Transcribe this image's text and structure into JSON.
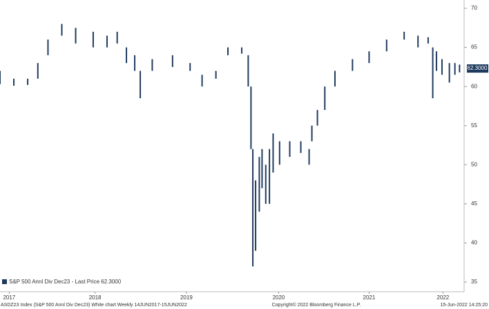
{
  "chart_data": {
    "type": "highlow",
    "series_name": "S&P 500 Annl Div Dec23 - Last Price 62.3000",
    "color": "#1f3a5f",
    "footer_left": "ASDZ23 Index (S&P 500 Annl Div  Dec23) White chart  Weekly 14JUN2017-15JUN2022",
    "footer_center": "Copyright© 2022 Bloomberg Finance L.P.",
    "footer_right": "15-Jun-2022 14:25:20",
    "last_value": 62.3,
    "last_value_label": "62.3000",
    "xlim": [
      2017.45,
      2022.45
    ],
    "xticks": [
      {
        "value": 2017.55,
        "label": "2017"
      },
      {
        "value": 2018.48,
        "label": "2018"
      },
      {
        "value": 2019.47,
        "label": "2019"
      },
      {
        "value": 2020.47,
        "label": "2020"
      },
      {
        "value": 2021.45,
        "label": "2021"
      },
      {
        "value": 2022.25,
        "label": "2022"
      }
    ],
    "ylim": [
      35,
      70
    ],
    "yticks": [
      35,
      40,
      45,
      50,
      55,
      60,
      65,
      70
    ],
    "x": [
      2017.45,
      2017.6,
      2017.75,
      2017.86,
      2017.97,
      2018.12,
      2018.27,
      2018.46,
      2018.61,
      2018.72,
      2018.82,
      2018.91,
      2018.97,
      2019.1,
      2019.32,
      2019.51,
      2019.64,
      2019.79,
      2019.92,
      2020.07,
      2020.14,
      2020.17,
      2020.19,
      2020.22,
      2020.26,
      2020.29,
      2020.33,
      2020.37,
      2020.41,
      2020.48,
      2020.59,
      2020.71,
      2020.8,
      2020.83,
      2020.89,
      2020.97,
      2021.08,
      2021.27,
      2021.45,
      2021.64,
      2021.83,
      2021.98,
      2022.09,
      2022.14,
      2022.18,
      2022.24,
      2022.32,
      2022.38,
      2022.43
    ],
    "high": [
      62,
      61,
      61,
      63,
      66,
      68,
      67.5,
      67,
      66.5,
      67,
      65,
      64,
      62,
      63.5,
      64,
      63,
      61.5,
      62,
      65,
      65,
      64,
      60,
      52,
      48,
      51,
      52,
      50,
      52,
      54,
      53,
      53,
      53,
      52,
      55,
      57,
      60,
      62,
      63.5,
      64.5,
      66,
      67,
      66.5,
      66.3,
      65,
      64.5,
      63.5,
      63,
      63,
      62.8
    ],
    "low": [
      60.3,
      60.1,
      60.2,
      61,
      64,
      66.5,
      65.5,
      65,
      65,
      65.5,
      63,
      62,
      58.5,
      62,
      62.5,
      62,
      60,
      61,
      64,
      64.2,
      60,
      52,
      37,
      39,
      44,
      47,
      45,
      45,
      49,
      50,
      51,
      51.5,
      50,
      53,
      55,
      57,
      60,
      62,
      63,
      64.5,
      66,
      65,
      65.5,
      58.5,
      62,
      61.5,
      60.5,
      61.5,
      61.8
    ]
  }
}
